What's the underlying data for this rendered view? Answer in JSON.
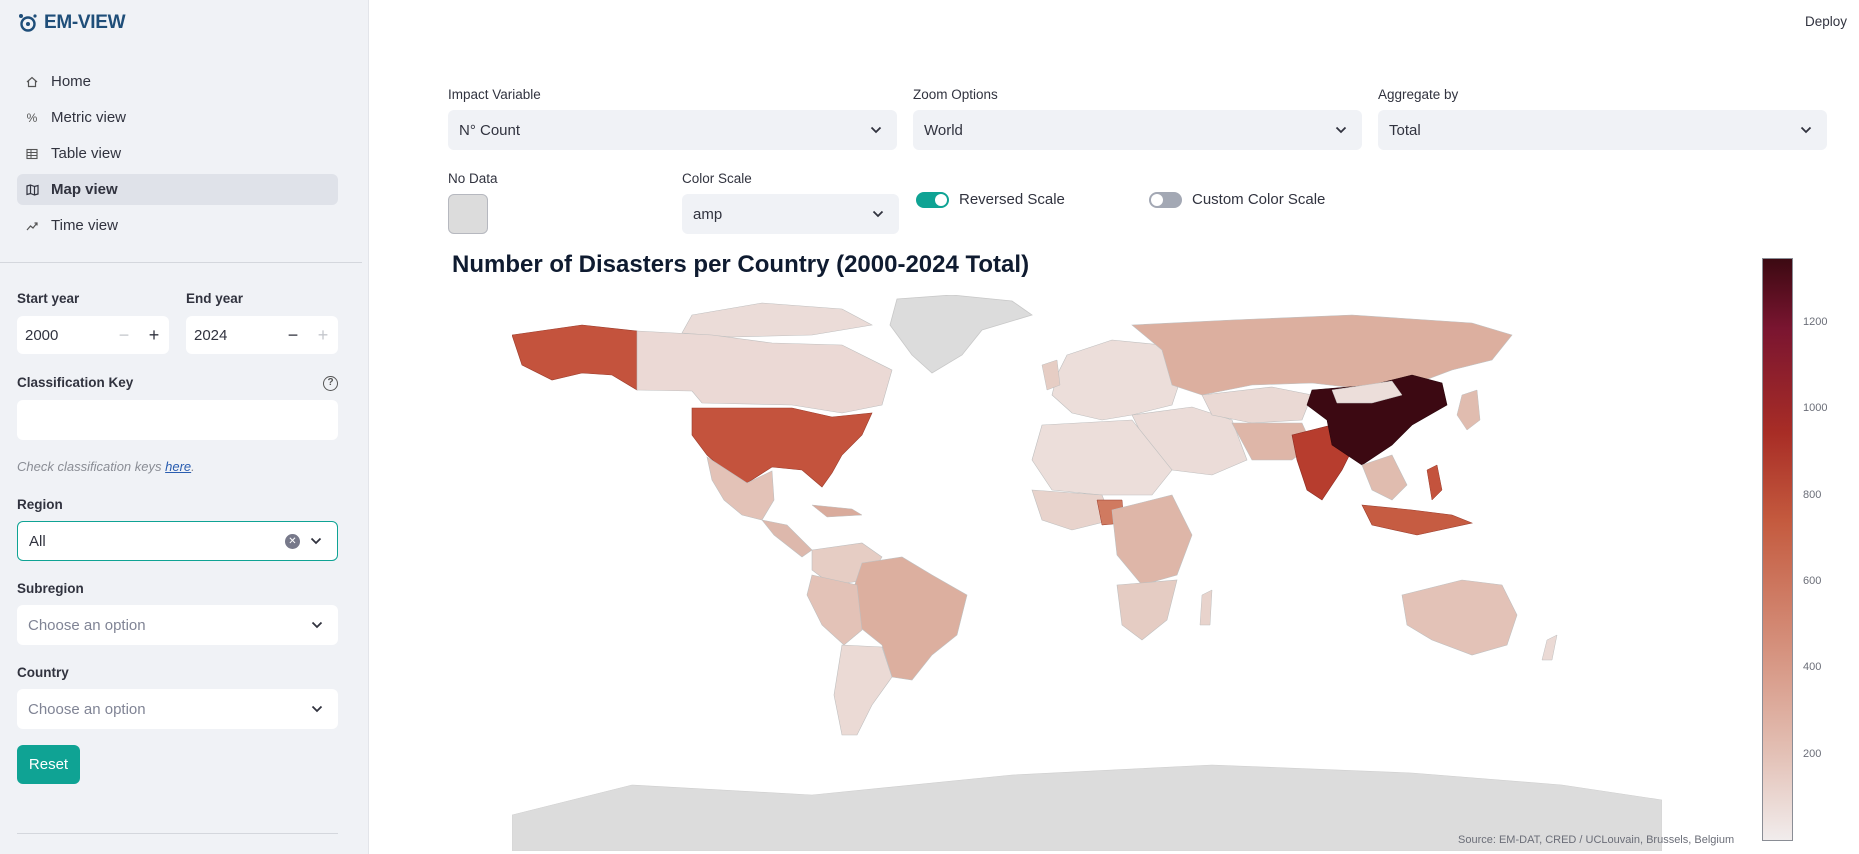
{
  "app": {
    "logo_text": "EM-VIEW",
    "deploy_label": "Deploy"
  },
  "nav": {
    "items": [
      {
        "label": "Home",
        "icon": "home-icon"
      },
      {
        "label": "Metric view",
        "icon": "percent-icon"
      },
      {
        "label": "Table view",
        "icon": "table-icon"
      },
      {
        "label": "Map view",
        "icon": "map-icon",
        "active": true
      },
      {
        "label": "Time view",
        "icon": "trend-icon"
      }
    ]
  },
  "filters": {
    "start_year": {
      "label": "Start year",
      "value": "2000"
    },
    "end_year": {
      "label": "End year",
      "value": "2024"
    },
    "classification_key": {
      "label": "Classification Key",
      "value": ""
    },
    "hint_prefix": "Check classification keys ",
    "hint_link": "here",
    "hint_suffix": ".",
    "region": {
      "label": "Region",
      "value": "All"
    },
    "subregion": {
      "label": "Subregion",
      "placeholder": "Choose an option"
    },
    "country": {
      "label": "Country",
      "placeholder": "Choose an option"
    },
    "reset_label": "Reset"
  },
  "controls": {
    "impact_variable": {
      "label": "Impact Variable",
      "value": "N° Count"
    },
    "zoom_options": {
      "label": "Zoom Options",
      "value": "World"
    },
    "aggregate_by": {
      "label": "Aggregate by",
      "value": "Total"
    },
    "no_data": {
      "label": "No Data",
      "color": "#dcdcdc"
    },
    "color_scale": {
      "label": "Color Scale",
      "value": "amp"
    },
    "reversed_scale": {
      "label": "Reversed Scale",
      "on": true
    },
    "custom_color_scale": {
      "label": "Custom Color Scale",
      "on": false
    }
  },
  "chart_data": {
    "type": "choropleth",
    "title": "Number of Disasters per Country (2000-2024 Total)",
    "colorbar_ticks": [
      "1200",
      "1000",
      "800",
      "600",
      "400",
      "200"
    ],
    "colorbar_range": [
      0,
      1350
    ],
    "source": "Source: EM-DAT, CRED / UCLouvain, Brussels, Belgium",
    "accent": "#0fa394"
  }
}
